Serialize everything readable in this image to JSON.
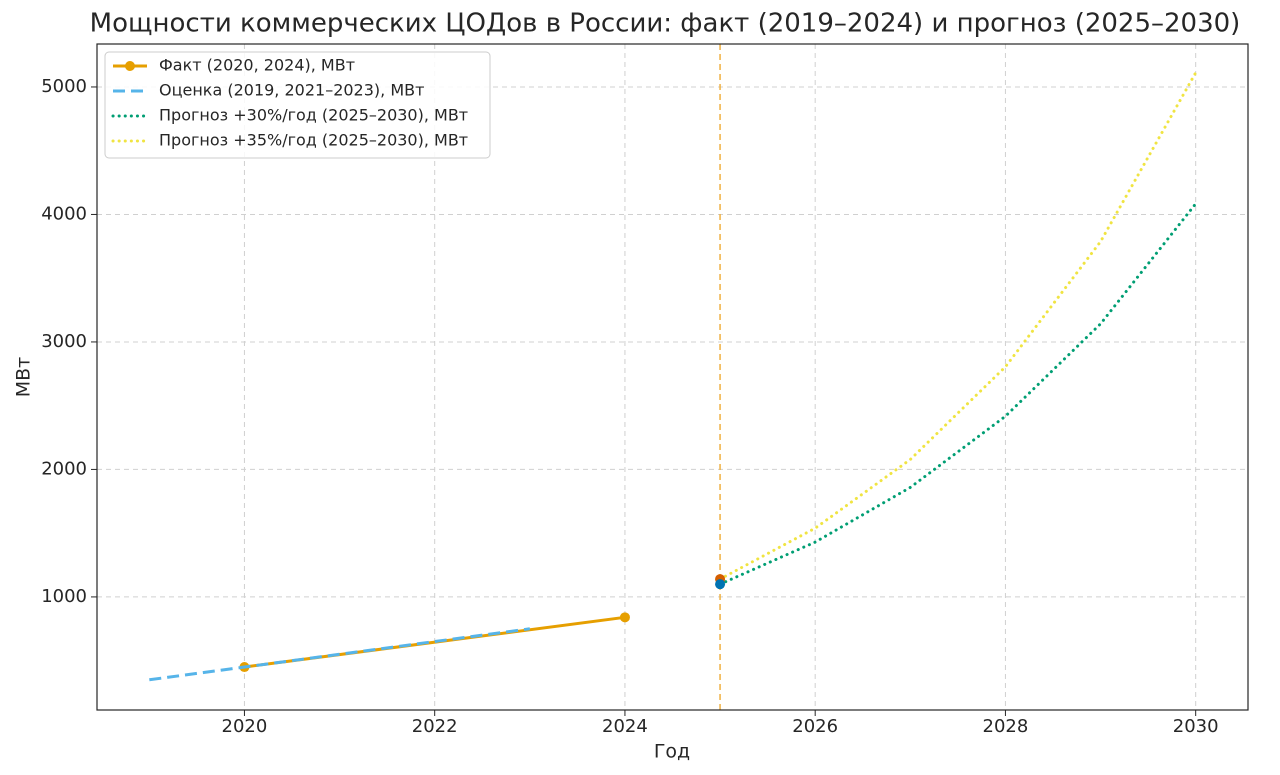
{
  "chart_data": {
    "type": "line",
    "title": "Мощности коммерческих ЦОДов в России: факт (2019–2024) и прогноз (2025–2030)",
    "x_label": "Год",
    "y_label": "МВт",
    "xlim": [
      2018.45,
      2030.55
    ],
    "xticks": [
      2020,
      2022,
      2024,
      2026,
      2028,
      2030
    ],
    "ylim": [
      113,
      5337
    ],
    "yticks": [
      1000,
      2000,
      3000,
      4000,
      5000
    ],
    "grid": true,
    "legend": "upper left",
    "series": [
      {
        "name": "Факт (2020, 2024), МВт",
        "color": "#e69f00",
        "linestyle": "solid",
        "marker": true,
        "x": [
          2020,
          2024
        ],
        "values": [
          450,
          840
        ]
      },
      {
        "name": "Оценка (2019, 2021–2023), МВт",
        "color": "#56b4e9",
        "linestyle": "dashed",
        "marker": false,
        "x": [
          2019,
          2020,
          2021,
          2022,
          2023
        ],
        "values": [
          350,
          450,
          550,
          650,
          750
        ]
      },
      {
        "name": "Прогноз +30%/год (2025–2030), МВт",
        "color": "#009e73",
        "linestyle": "dotted",
        "marker": false,
        "x": [
          2025,
          2026,
          2027,
          2028,
          2029,
          2030
        ],
        "values": [
          1100,
          1430,
          1859,
          2417,
          3142,
          4084
        ]
      },
      {
        "name": "Прогноз +35%/год (2025–2030), МВт",
        "color": "#f0e442",
        "linestyle": "dotted",
        "marker": false,
        "x": [
          2025,
          2026,
          2027,
          2028,
          2029,
          2030
        ],
        "values": [
          1140,
          1539,
          2078,
          2805,
          3787,
          5112
        ]
      }
    ],
    "vline": {
      "x": 2025,
      "color": "#f0b040"
    },
    "points": [
      {
        "x": 2025,
        "y": 1140,
        "color": "#d55e00"
      },
      {
        "x": 2025,
        "y": 1100,
        "color": "#0072b2"
      }
    ]
  }
}
